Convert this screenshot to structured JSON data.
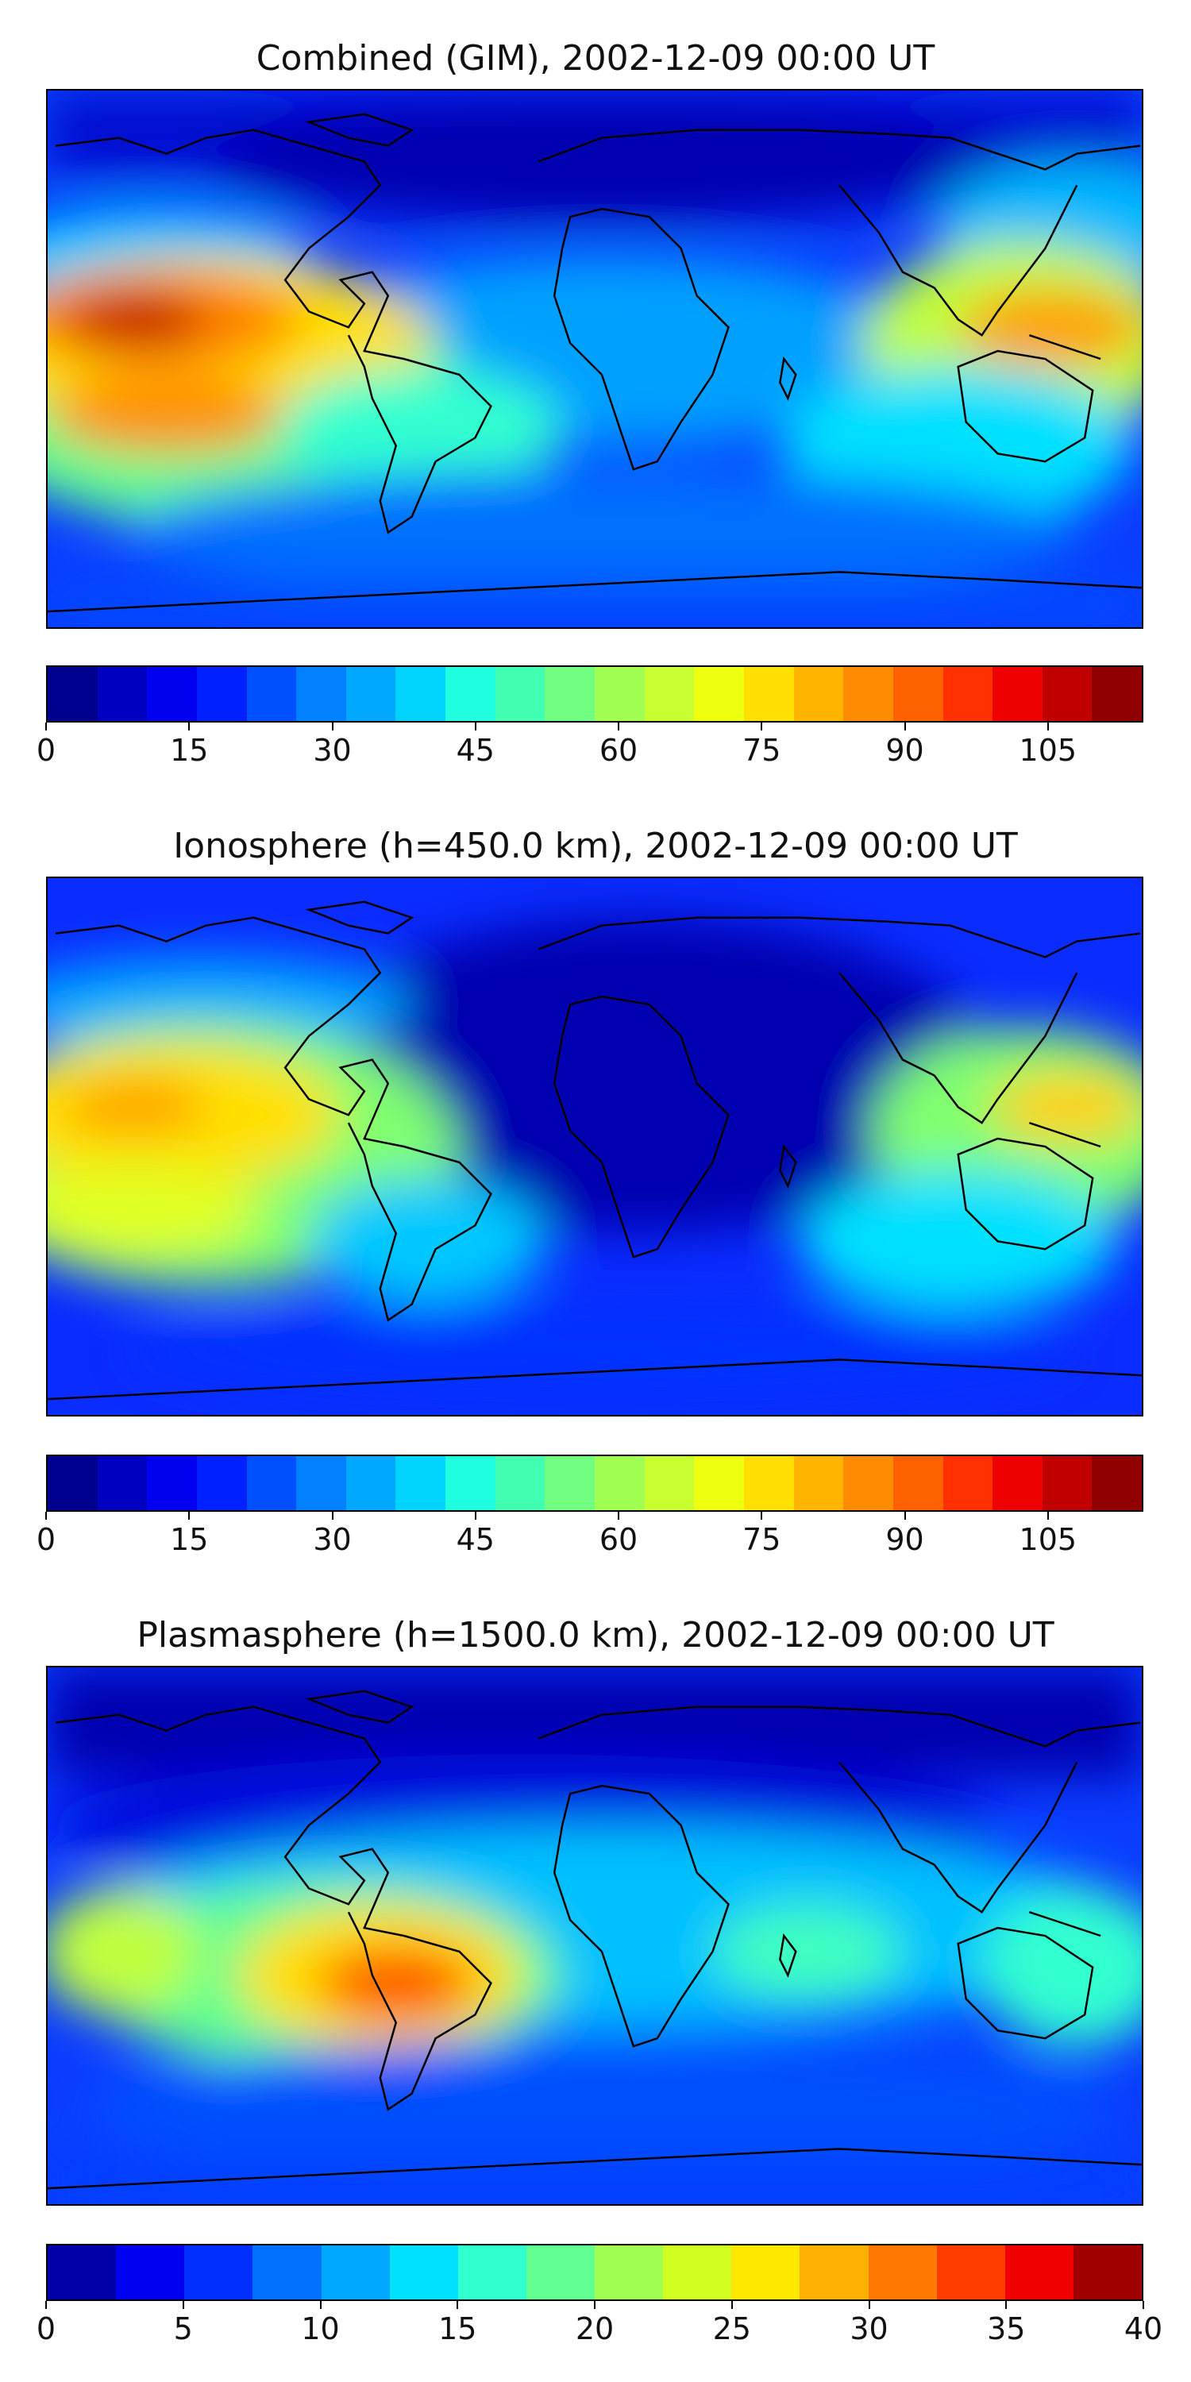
{
  "panels": [
    {
      "title": "Combined (GIM), 2002-12-09 00:00 UT",
      "colorbar": {
        "vmin": 0,
        "vmax": 115,
        "ticks": [
          "0",
          "15",
          "30",
          "45",
          "60",
          "75",
          "90",
          "105"
        ],
        "tick_values": [
          0,
          15,
          30,
          45,
          60,
          75,
          90,
          105
        ],
        "colors": [
          "#00008f",
          "#0000c0",
          "#0000ee",
          "#0020ff",
          "#0050ff",
          "#0080ff",
          "#00a8ff",
          "#00d4ff",
          "#20ffe0",
          "#40ffb0",
          "#70ff80",
          "#a0ff50",
          "#c8ff30",
          "#eeff10",
          "#ffe000",
          "#ffb400",
          "#ff8c00",
          "#ff6000",
          "#ff3000",
          "#ee0000",
          "#c00000",
          "#900000"
        ]
      },
      "map": {
        "background": "#0a3cff",
        "features": "Pacific equatorial maximum near 105 TECU; secondary maximum east of Asia"
      }
    },
    {
      "title": "Ionosphere  (h=450.0 km), 2002-12-09 00:00 UT",
      "colorbar": {
        "vmin": 0,
        "vmax": 115,
        "ticks": [
          "0",
          "15",
          "30",
          "45",
          "60",
          "75",
          "90",
          "105"
        ],
        "tick_values": [
          0,
          15,
          30,
          45,
          60,
          75,
          90,
          105
        ],
        "colors": [
          "#00008f",
          "#0000c0",
          "#0000ee",
          "#0020ff",
          "#0050ff",
          "#0080ff",
          "#00a8ff",
          "#00d4ff",
          "#20ffe0",
          "#40ffb0",
          "#70ff80",
          "#a0ff50",
          "#c8ff30",
          "#eeff10",
          "#ffe000",
          "#ffb400",
          "#ff8c00",
          "#ff6000",
          "#ff3000",
          "#ee0000",
          "#c00000",
          "#900000"
        ]
      },
      "map": {
        "background": "#0a2cff",
        "features": "Pacific maximum near 80 TECU; low values over Africa and Eurasia"
      }
    },
    {
      "title": "Plasmasphere (h=1500.0 km), 2002-12-09 00:00 UT",
      "colorbar": {
        "vmin": 0,
        "vmax": 40,
        "ticks": [
          "0",
          "5",
          "10",
          "15",
          "20",
          "25",
          "30",
          "35",
          "40"
        ],
        "tick_values": [
          0,
          5,
          10,
          15,
          20,
          25,
          30,
          35,
          40
        ],
        "colors": [
          "#0000a8",
          "#0000f0",
          "#0030ff",
          "#0070ff",
          "#00a8ff",
          "#00e0ff",
          "#30ffd0",
          "#60ff90",
          "#a0ff50",
          "#d0ff20",
          "#ffe800",
          "#ffb000",
          "#ff7800",
          "#ff3c00",
          "#f00000",
          "#a00000"
        ]
      },
      "map": {
        "background": "#0a3cff",
        "features": "Maximum near 35 TECU over South America"
      }
    }
  ]
}
